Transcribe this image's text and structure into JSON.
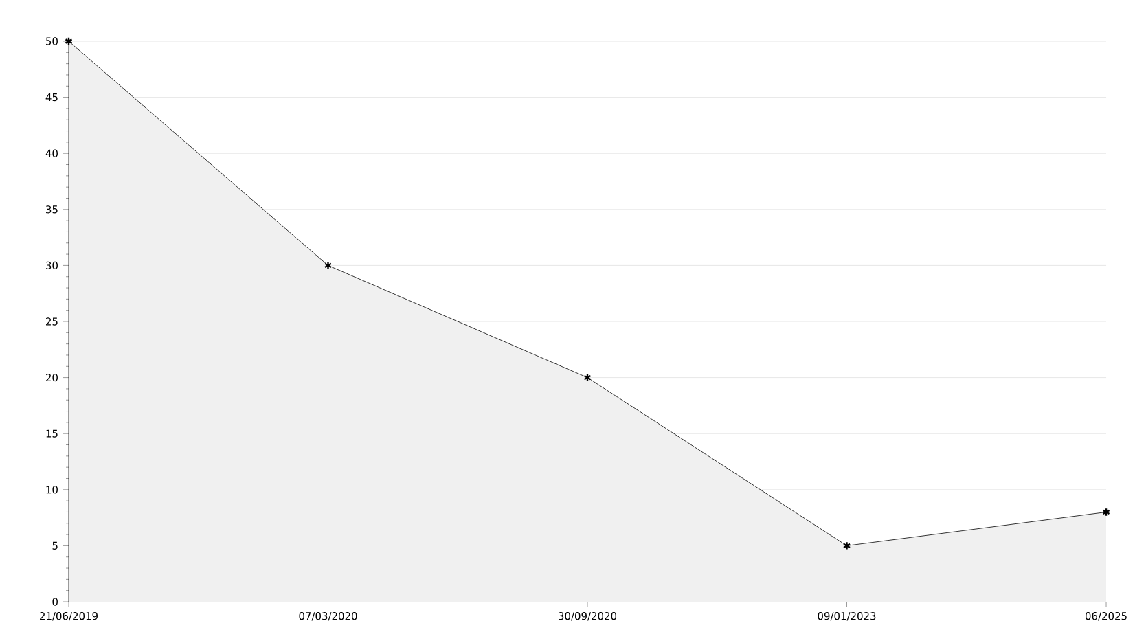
{
  "chart_data": {
    "type": "area",
    "categories": [
      "21/06/2019",
      "07/03/2020",
      "30/09/2020",
      "09/01/2023",
      "06/2025"
    ],
    "values": [
      50,
      30,
      20,
      5,
      8
    ],
    "color": "#000000",
    "ylim": [
      0,
      50
    ],
    "yticks": [
      0,
      5,
      10,
      15,
      20,
      25,
      30,
      35,
      40,
      45,
      50
    ],
    "grid": "y",
    "marker": "cross"
  }
}
